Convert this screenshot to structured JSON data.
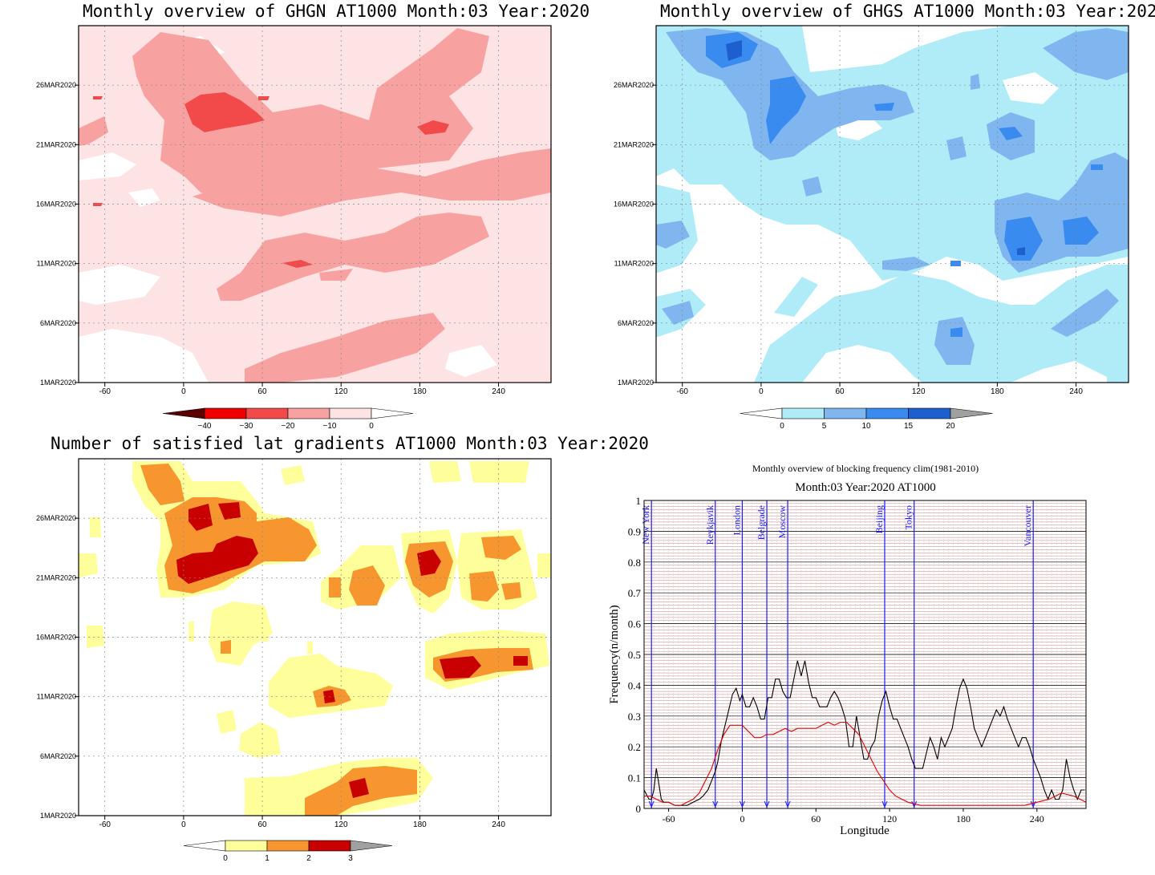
{
  "panels": {
    "ghgn": {
      "title": "Monthly overview of GHGN AT1000 Month:03 Year:2020",
      "date_labels": [
        "1MAR2020",
        "6MAR2020",
        "11MAR2020",
        "16MAR2020",
        "21MAR2020",
        "26MAR2020"
      ],
      "lon_labels": [
        "-60",
        "0",
        "60",
        "120",
        "180",
        "240"
      ],
      "colorbar_labels": [
        "-40",
        "-30",
        "-20",
        "-10",
        "0"
      ],
      "colors": [
        "#5a0000",
        "#ee0000",
        "#f24a4a",
        "#f7a1a1",
        "#fde3e3",
        "#ffffff"
      ]
    },
    "ghgs": {
      "title": "Monthly overview of GHGS AT1000 Month:03 Year:2020",
      "date_labels": [
        "1MAR2020",
        "6MAR2020",
        "11MAR2020",
        "16MAR2020",
        "21MAR2020",
        "26MAR2020"
      ],
      "lon_labels": [
        "-60",
        "0",
        "60",
        "120",
        "180",
        "240"
      ],
      "colorbar_labels": [
        "0",
        "5",
        "10",
        "15",
        "20"
      ],
      "colors": [
        "#ffffff",
        "#b0ecf7",
        "#7fb6ef",
        "#3a8bef",
        "#1e5fcf",
        "#a0a0a0"
      ]
    },
    "lat": {
      "title": "Number of satisfied lat gradients AT1000 Month:03 Year:2020",
      "date_labels": [
        "1MAR2020",
        "6MAR2020",
        "11MAR2020",
        "16MAR2020",
        "21MAR2020",
        "26MAR2020"
      ],
      "lon_labels": [
        "-60",
        "0",
        "60",
        "120",
        "180",
        "240"
      ],
      "colorbar_labels": [
        "0",
        "1",
        "2",
        "3"
      ],
      "colors": [
        "#ffffff",
        "#fefe9a",
        "#f7962f",
        "#c80000",
        "#a0a0a0"
      ]
    }
  },
  "chart_data": [
    {
      "type": "heatmap",
      "title": "Monthly overview of GHGN AT1000 Month:03 Year:2020",
      "x_ticks": [
        -60,
        0,
        60,
        120,
        180,
        240
      ],
      "y_ticks": [
        "1MAR2020",
        "6MAR2020",
        "11MAR2020",
        "16MAR2020",
        "21MAR2020",
        "26MAR2020"
      ],
      "color_levels": [
        -40,
        -30,
        -20,
        -10,
        0
      ]
    },
    {
      "type": "heatmap",
      "title": "Monthly overview of GHGS AT1000 Month:03 Year:2020",
      "x_ticks": [
        -60,
        0,
        60,
        120,
        180,
        240
      ],
      "y_ticks": [
        "1MAR2020",
        "6MAR2020",
        "11MAR2020",
        "16MAR2020",
        "21MAR2020",
        "26MAR2020"
      ],
      "color_levels": [
        0,
        5,
        10,
        15,
        20
      ]
    },
    {
      "type": "heatmap",
      "title": "Number of satisfied lat gradients AT1000 Month:03 Year:2020",
      "x_ticks": [
        -60,
        0,
        60,
        120,
        180,
        240
      ],
      "y_ticks": [
        "1MAR2020",
        "6MAR2020",
        "11MAR2020",
        "16MAR2020",
        "21MAR2020",
        "26MAR2020"
      ],
      "color_levels": [
        0,
        1,
        2,
        3
      ]
    },
    {
      "type": "line",
      "title": "Monthly overview of blocking frequency clim(1981-2010)",
      "subtitle": "Month:03 Year:2020  AT1000",
      "xlabel": "Longitude",
      "ylabel": "Frequency(n/month)",
      "x_ticks": [
        -60,
        0,
        60,
        120,
        180,
        240
      ],
      "y_ticks": [
        "0",
        "0.1",
        "0.2",
        "0.3",
        "0.4",
        "0.5",
        "0.6",
        "0.7",
        "0.8",
        "0.9",
        "1"
      ],
      "xlim": [
        -80,
        280
      ],
      "ylim": [
        0,
        1
      ],
      "cities": [
        {
          "name": "New York",
          "lon": -74
        },
        {
          "name": "Reykjavik",
          "lon": -22
        },
        {
          "name": "London",
          "lon": 0
        },
        {
          "name": "Belgrade",
          "lon": 20
        },
        {
          "name": "Moscow",
          "lon": 37
        },
        {
          "name": "Beijing",
          "lon": 116
        },
        {
          "name": "Tokyo",
          "lon": 140
        },
        {
          "name": "Vancouver",
          "lon": 237
        }
      ],
      "series": [
        {
          "color": "#000000",
          "x": [
            -80,
            -76,
            -74,
            -72,
            -70,
            -68,
            -66,
            -64,
            -60,
            -55,
            -50,
            -45,
            -40,
            -35,
            -32,
            -28,
            -25,
            -22,
            -20,
            -17,
            -14,
            -11,
            -8,
            -5,
            -2,
            0,
            3,
            6,
            9,
            12,
            15,
            18,
            21,
            24,
            27,
            30,
            33,
            36,
            39,
            42,
            45,
            48,
            51,
            54,
            57,
            60,
            63,
            66,
            69,
            72,
            75,
            78,
            81,
            84,
            87,
            90,
            93,
            96,
            99,
            102,
            105,
            108,
            111,
            114,
            117,
            120,
            123,
            126,
            129,
            132,
            135,
            138,
            141,
            144,
            147,
            150,
            153,
            156,
            159,
            162,
            165,
            168,
            171,
            174,
            177,
            180,
            183,
            186,
            189,
            192,
            195,
            198,
            201,
            204,
            207,
            210,
            213,
            216,
            219,
            222,
            225,
            228,
            231,
            234,
            237,
            240,
            243,
            246,
            249,
            252,
            255,
            258,
            261,
            264,
            267,
            270,
            273,
            276,
            279
          ],
          "y": [
            0.06,
            0.03,
            0.03,
            0.06,
            0.13,
            0.08,
            0.03,
            0.02,
            0.02,
            0.01,
            0.01,
            0.01,
            0.02,
            0.03,
            0.04,
            0.06,
            0.09,
            0.12,
            0.15,
            0.22,
            0.27,
            0.32,
            0.37,
            0.39,
            0.35,
            0.37,
            0.33,
            0.33,
            0.36,
            0.33,
            0.29,
            0.29,
            0.36,
            0.36,
            0.42,
            0.42,
            0.38,
            0.36,
            0.36,
            0.42,
            0.48,
            0.43,
            0.48,
            0.41,
            0.36,
            0.36,
            0.33,
            0.33,
            0.33,
            0.36,
            0.38,
            0.36,
            0.33,
            0.29,
            0.2,
            0.2,
            0.3,
            0.23,
            0.16,
            0.16,
            0.2,
            0.22,
            0.3,
            0.35,
            0.38,
            0.33,
            0.29,
            0.29,
            0.26,
            0.23,
            0.2,
            0.16,
            0.13,
            0.13,
            0.13,
            0.18,
            0.23,
            0.2,
            0.16,
            0.23,
            0.2,
            0.23,
            0.26,
            0.33,
            0.39,
            0.42,
            0.39,
            0.33,
            0.26,
            0.23,
            0.2,
            0.23,
            0.26,
            0.29,
            0.32,
            0.3,
            0.33,
            0.29,
            0.26,
            0.23,
            0.2,
            0.23,
            0.23,
            0.2,
            0.16,
            0.13,
            0.1,
            0.06,
            0.03,
            0.06,
            0.03,
            0.03,
            0.06,
            0.16,
            0.1,
            0.06,
            0.03,
            0.06,
            0.06
          ],
          "y_dark_note": ""
        },
        {
          "color": "#e00000",
          "x": [
            -80,
            -75,
            -70,
            -65,
            -60,
            -55,
            -50,
            -45,
            -40,
            -35,
            -30,
            -25,
            -20,
            -15,
            -10,
            -5,
            0,
            5,
            10,
            15,
            20,
            25,
            30,
            35,
            40,
            45,
            50,
            55,
            60,
            65,
            70,
            75,
            80,
            85,
            90,
            95,
            100,
            105,
            110,
            115,
            120,
            125,
            130,
            135,
            140,
            145,
            150,
            160,
            170,
            180,
            190,
            200,
            210,
            220,
            230,
            240,
            250,
            260,
            270,
            280
          ],
          "y": [
            0.04,
            0.04,
            0.03,
            0.02,
            0.02,
            0.01,
            0.01,
            0.02,
            0.03,
            0.05,
            0.09,
            0.13,
            0.19,
            0.24,
            0.27,
            0.27,
            0.27,
            0.25,
            0.23,
            0.23,
            0.24,
            0.24,
            0.25,
            0.26,
            0.25,
            0.26,
            0.26,
            0.26,
            0.26,
            0.27,
            0.28,
            0.27,
            0.28,
            0.28,
            0.26,
            0.24,
            0.2,
            0.16,
            0.12,
            0.09,
            0.06,
            0.04,
            0.03,
            0.02,
            0.015,
            0.01,
            0.01,
            0.01,
            0.01,
            0.01,
            0.01,
            0.01,
            0.01,
            0.01,
            0.01,
            0.02,
            0.03,
            0.05,
            0.04,
            0.02
          ]
        }
      ]
    }
  ]
}
